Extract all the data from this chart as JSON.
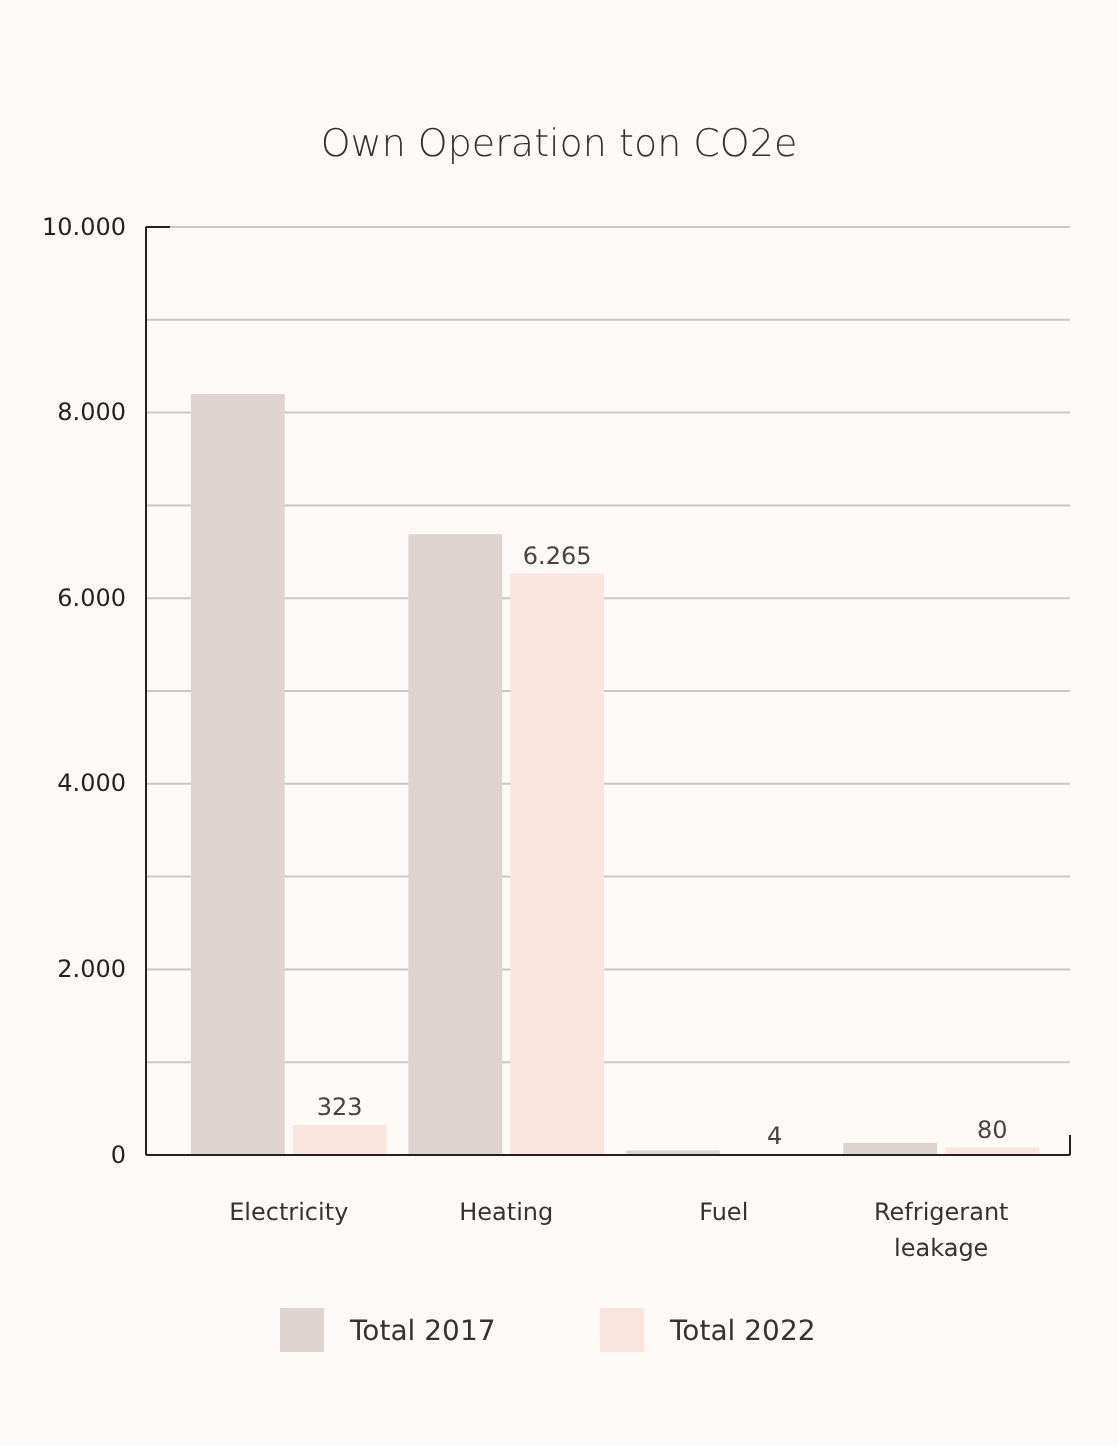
{
  "chart_data": {
    "type": "bar",
    "title": "Own Operation ton CO2e",
    "categories": [
      "Electricity",
      "Heating",
      "Fuel",
      "Refrigerant leakage"
    ],
    "series": [
      {
        "name": "Total 2017",
        "color": "#ded3cf",
        "values": [
          8200,
          6690,
          50,
          130
        ]
      },
      {
        "name": "Total 2022",
        "color": "#f9e5dd",
        "values": [
          323,
          6265,
          4,
          80
        ],
        "value_labels": [
          "323",
          "6.265",
          "4",
          "80"
        ]
      }
    ],
    "ylim": [
      0,
      10000
    ],
    "yticks": [
      {
        "value": 0,
        "label": "0"
      },
      {
        "value": 1000,
        "label": null
      },
      {
        "value": 2000,
        "label": "2.000"
      },
      {
        "value": 3000,
        "label": null
      },
      {
        "value": 4000,
        "label": "4.000"
      },
      {
        "value": 5000,
        "label": null
      },
      {
        "value": 6000,
        "label": "6.000"
      },
      {
        "value": 7000,
        "label": null
      },
      {
        "value": 8000,
        "label": "8.000"
      },
      {
        "value": 9000,
        "label": null
      },
      {
        "value": 10000,
        "label": "10.000"
      }
    ],
    "grid": "y",
    "legend": "bottom"
  }
}
